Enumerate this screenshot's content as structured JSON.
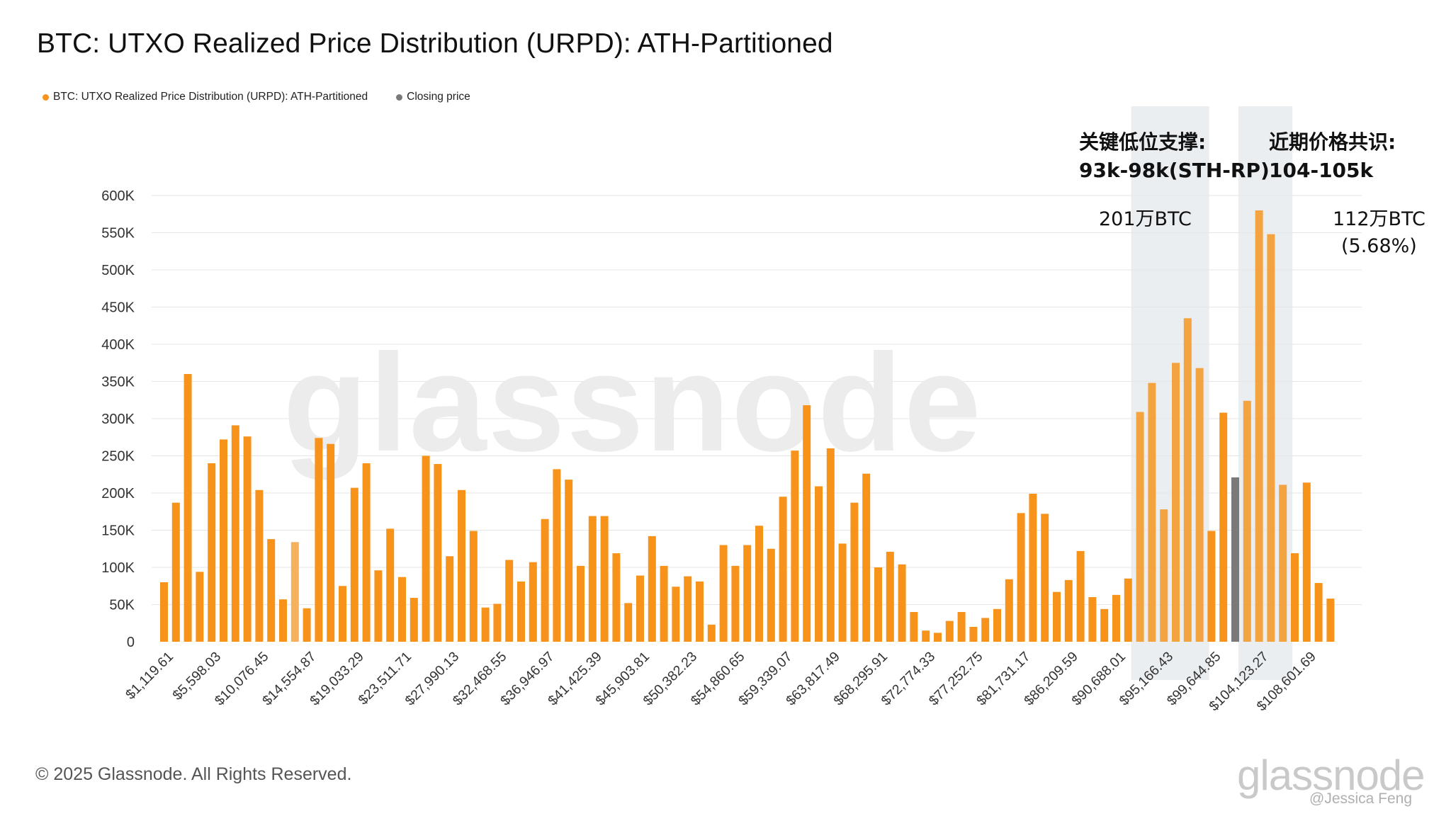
{
  "title": "BTC: UTXO Realized Price Distribution (URPD): ATH-Partitioned",
  "legend": [
    {
      "label": "BTC: UTXO Realized Price Distribution (URPD): ATH-Partitioned",
      "color": "#f7931a"
    },
    {
      "label": "Closing price",
      "color": "#7a7a7a"
    }
  ],
  "colors": {
    "bar": "#f7931a",
    "bar_light": "#f5b15e",
    "closing": "#7a7a7a",
    "band": "#e6ebee",
    "grid": "#e6e6e6",
    "watermark": "#ededed"
  },
  "annotations": {
    "support_line1": "关键低位支撑:",
    "support_line2": "93k-98k(STH-RP)",
    "support_amount": "201万BTC",
    "consensus_line1": "近期价格共识:",
    "consensus_line2": "104-105k",
    "consensus_amount_line1": "112万BTC",
    "consensus_amount_line2": "(5.68%)"
  },
  "watermark": "glassnode",
  "footer": {
    "copyright": "© 2025 Glassnode. All Rights Reserved.",
    "logo": "glassnode",
    "credit": "@Jessica Feng"
  },
  "chart_data": {
    "type": "bar",
    "title": "BTC: UTXO Realized Price Distribution (URPD): ATH-Partitioned",
    "ylim": [
      0,
      600000
    ],
    "y_ticks": [
      0,
      50000,
      100000,
      150000,
      200000,
      250000,
      300000,
      350000,
      400000,
      450000,
      500000,
      550000,
      600000
    ],
    "y_tick_labels": [
      "0",
      "50K",
      "100K",
      "150K",
      "200K",
      "250K",
      "300K",
      "350K",
      "400K",
      "450K",
      "500K",
      "550K",
      "600K"
    ],
    "x_tick_labels": [
      "$1,119.61",
      "$5,598.03",
      "$10,076.45",
      "$14,554.87",
      "$19,033.29",
      "$23,511.71",
      "$27,990.13",
      "$32,468.55",
      "$36,946.97",
      "$41,425.39",
      "$45,903.81",
      "$50,382.23",
      "$54,860.65",
      "$59,339.07",
      "$63,817.49",
      "$68,295.91",
      "$72,774.33",
      "$77,252.75",
      "$81,731.17",
      "$86,209.59",
      "$90,688.01",
      "$95,166.43",
      "$99,644.85",
      "$104,123.27",
      "$108,601.69"
    ],
    "bin_width": 1119.6,
    "bin_start": 1119.61,
    "values": [
      80000,
      187000,
      360000,
      94000,
      240000,
      272000,
      291000,
      276000,
      204000,
      138000,
      57000,
      134000,
      45000,
      274000,
      266000,
      75000,
      207000,
      240000,
      96000,
      152000,
      87000,
      59000,
      250000,
      239000,
      115000,
      204000,
      149000,
      46000,
      51000,
      110000,
      81000,
      107000,
      165000,
      232000,
      218000,
      102000,
      169000,
      169000,
      119000,
      52000,
      89000,
      142000,
      102000,
      74000,
      88000,
      81000,
      23000,
      130000,
      102000,
      130000,
      156000,
      125000,
      195000,
      257000,
      318000,
      209000,
      260000,
      132000,
      187000,
      226000,
      100000,
      121000,
      104000,
      40000,
      15000,
      12000,
      28000,
      40000,
      20000,
      32000,
      44000,
      84000,
      173000,
      199000,
      172000,
      67000,
      83000,
      122000,
      60000,
      44000,
      63000,
      85000,
      309000,
      348000,
      178000,
      375000,
      435000,
      368000,
      149000,
      308000,
      221000,
      324000,
      580000,
      548000,
      211000,
      119000,
      214000,
      79000,
      58000
    ],
    "light_bar_indices": [
      11
    ],
    "closing_price_index": 90,
    "highlight_ranges": [
      {
        "label": "93k-98k(STH-RP)",
        "from_index": 82,
        "to_index": 87
      },
      {
        "label": "104-105k",
        "from_index": 91,
        "to_index": 94
      }
    ],
    "grid": true,
    "legend_position": "top-left"
  }
}
